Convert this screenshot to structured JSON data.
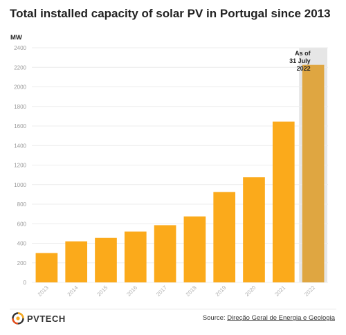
{
  "title": "Total installed capacity of solar PV in Portugal since 2013",
  "chart_data": {
    "type": "bar",
    "title": "Total installed capacity of solar PV in Portugal since 2013",
    "ylabel": "MW",
    "xlabel": "",
    "categories": [
      "2013",
      "2014",
      "2015",
      "2016",
      "2017",
      "2018",
      "2019",
      "2020",
      "2021",
      "2022"
    ],
    "values": [
      300,
      420,
      455,
      520,
      585,
      675,
      925,
      1075,
      1645,
      2225
    ],
    "ylim": [
      0,
      2400
    ],
    "yticks": [
      0,
      200,
      400,
      600,
      800,
      1000,
      1200,
      1400,
      1600,
      1800,
      2000,
      2200,
      2400
    ],
    "grid": true,
    "highlight_category": "2022",
    "annotation": {
      "category": "2022",
      "lines": [
        "As of",
        "31 July",
        "2022"
      ]
    },
    "colors": {
      "bar": "#fbaa1b",
      "highlight_bar": "#dfa641",
      "highlight_background": "#e6e6e6",
      "grid": "#ececec"
    }
  },
  "footer": {
    "logo_text": "PVTECH",
    "logo_icon": "pv-tech-logo-icon",
    "source_prefix": "Source: ",
    "source_name": "Direção Geral de Energia e Geologia"
  }
}
